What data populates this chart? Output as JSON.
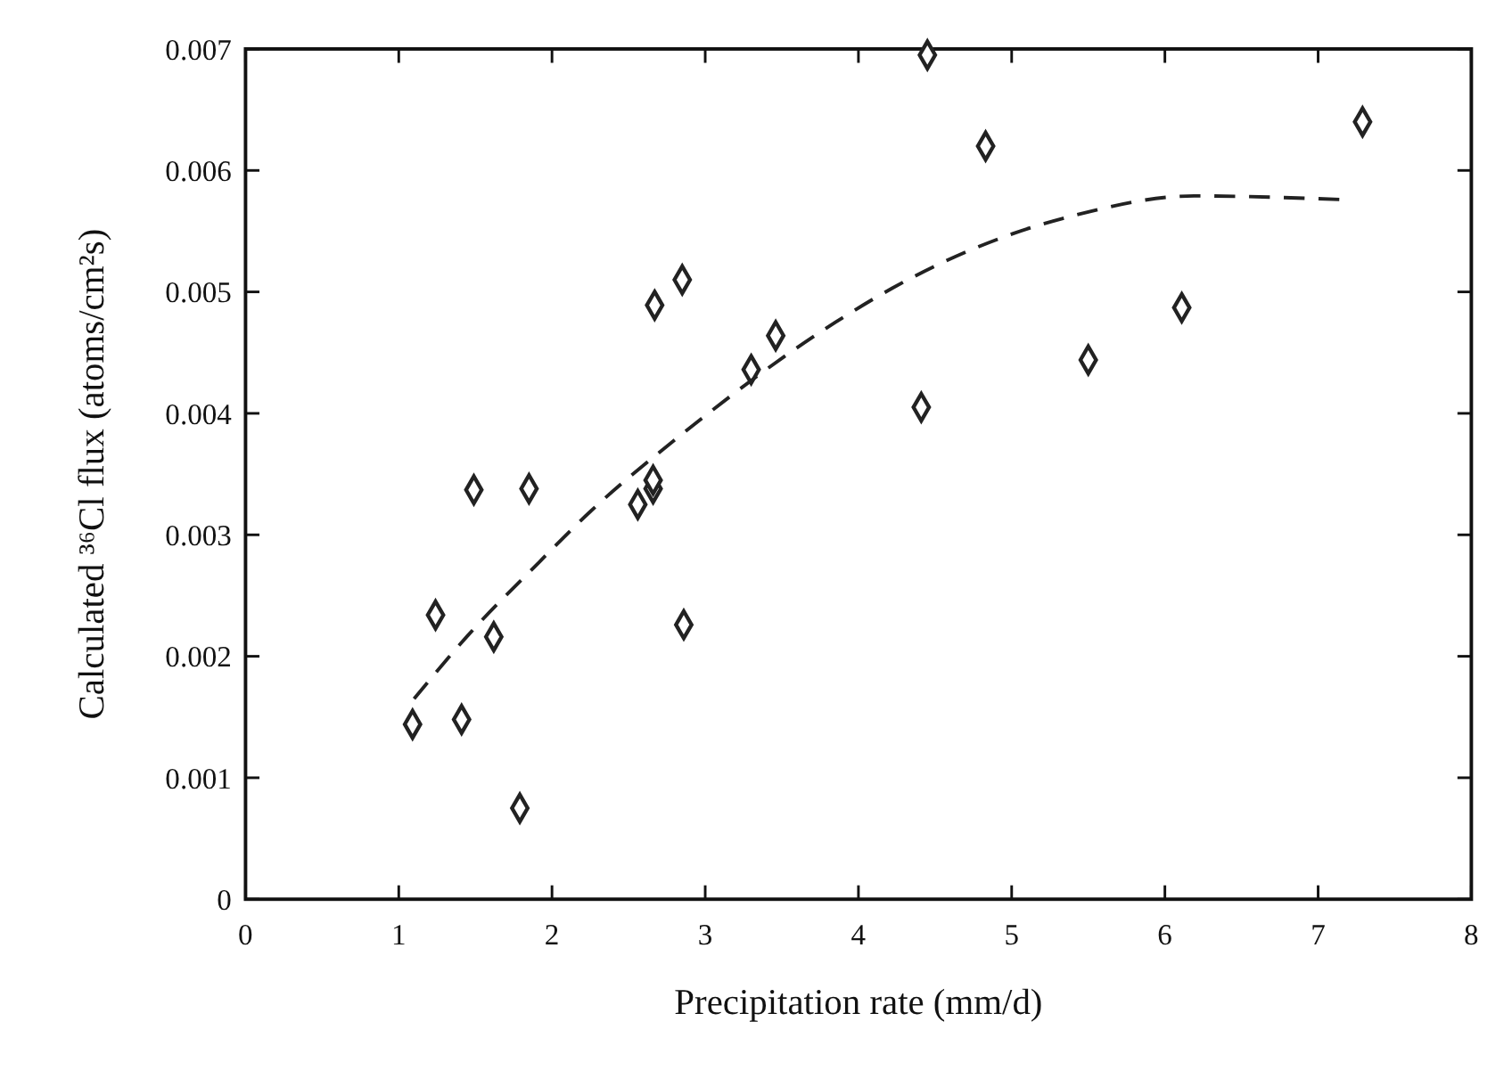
{
  "chart_data": {
    "type": "scatter",
    "xlabel": "Precipitation rate (mm/d)",
    "ylabel": "Calculated ³⁶Cl flux (atoms/cm²s)",
    "xlim": [
      0,
      8
    ],
    "xticks": [
      0,
      1,
      2,
      3,
      4,
      5,
      6,
      7,
      8
    ],
    "ylim": [
      0,
      0.007
    ],
    "yticks": [
      0,
      0.001,
      0.002,
      0.003,
      0.004,
      0.005,
      0.006,
      0.007
    ],
    "grid": false,
    "series": [
      {
        "marker": "diamond",
        "color": "#222222",
        "x": [
          1.09,
          1.41,
          1.24,
          1.62,
          1.79,
          2.86,
          1.49,
          1.85,
          2.56,
          2.66,
          2.66,
          2.67,
          2.85,
          3.3,
          3.46,
          4.45,
          4.83,
          7.29,
          4.41,
          5.5,
          6.11
        ],
        "values": [
          0.00144,
          0.00148,
          0.00234,
          0.00216,
          0.00075,
          0.00226,
          0.00337,
          0.00338,
          0.00325,
          0.00338,
          0.00345,
          0.00489,
          0.0051,
          0.00436,
          0.00464,
          0.00695,
          0.0062,
          0.0064,
          0.00405,
          0.00444,
          0.00487
        ]
      },
      {
        "type": "line",
        "marker": "none",
        "line_style": "dashed",
        "color": "#222222",
        "x": [
          1.1,
          1.45,
          1.92,
          2.24,
          2.83,
          3.85,
          4.22,
          5.01,
          5.41,
          6.19,
          7.16
        ],
        "values": [
          0.00165,
          0.00217,
          0.00278,
          0.00318,
          0.00381,
          0.00475,
          0.00503,
          0.00548,
          0.00563,
          0.00579,
          0.00576
        ]
      }
    ]
  }
}
